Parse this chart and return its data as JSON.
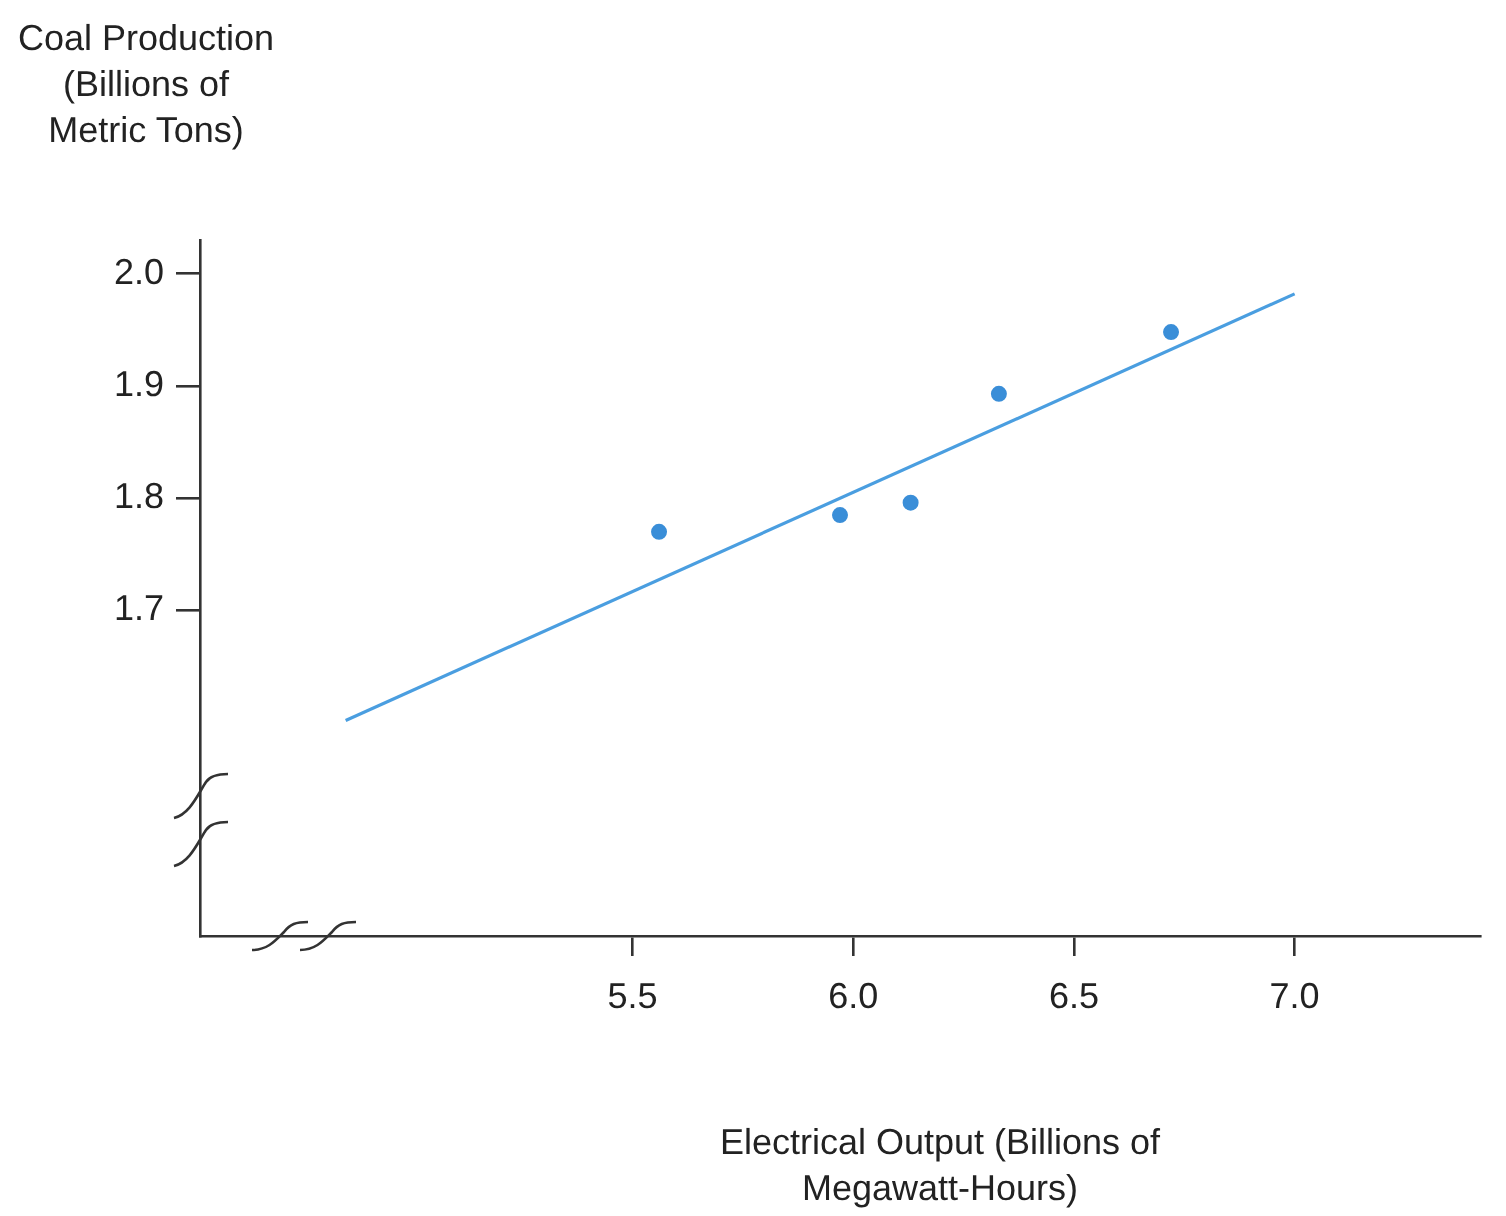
{
  "chart_data": {
    "type": "scatter",
    "xlabel": "Electrical Output (Billions of Megawatt-Hours)",
    "ylabel": "Coal Production (Billions of Metric Tons)",
    "series": [
      {
        "type": "scatter",
        "x": [
          5.56,
          5.97,
          6.13,
          6.33,
          6.72
        ],
        "values": [
          1.77,
          1.785,
          1.796,
          1.893,
          1.948
        ],
        "color": "#3a8ed8",
        "marker": "circle"
      },
      {
        "type": "line",
        "x": [
          4.85,
          7.0
        ],
        "values": [
          1.602,
          1.982
        ],
        "color": "#4a9ee0"
      }
    ],
    "xlim": [
      4.52,
      7.42
    ],
    "ylim": [
      1.41,
      2.03
    ],
    "xticks": [
      5.5,
      {
        "value": 6,
        "label": "6.0"
      },
      6.5,
      {
        "value": 7,
        "label": "7.0"
      }
    ],
    "yticks": [
      1.7,
      1.8,
      1.9,
      {
        "value": 2,
        "label": "2.0"
      }
    ],
    "grid": false,
    "legend": false
  }
}
